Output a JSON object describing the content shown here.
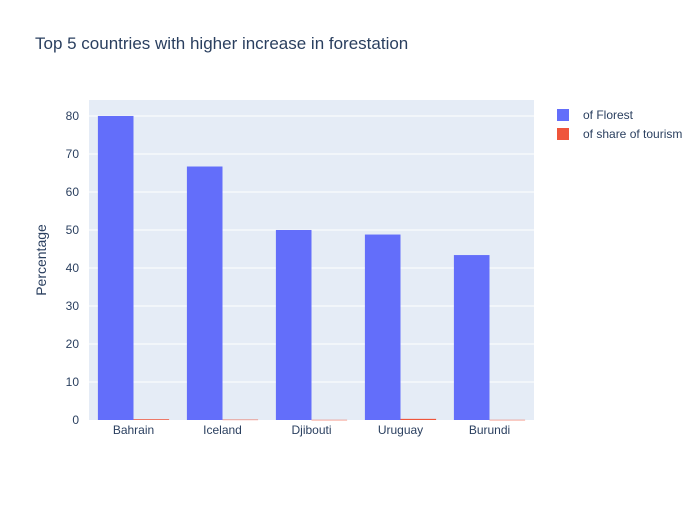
{
  "chart_data": {
    "type": "bar",
    "title": "Top 5 countries with higher increase in forestation",
    "xlabel": "",
    "ylabel": "Percentage",
    "categories": [
      "Bahrain",
      "Iceland",
      "Djibouti",
      "Uruguay",
      "Burundi"
    ],
    "series": [
      {
        "name": "of Florest",
        "color": "#636efa",
        "values": [
          80.0,
          66.7,
          50.0,
          48.8,
          43.4
        ]
      },
      {
        "name": "of share of tourism",
        "color": "#ef553b",
        "values": [
          0.2,
          0.1,
          0.05,
          0.3,
          0.05
        ]
      }
    ],
    "yticks": [
      0,
      10,
      20,
      30,
      40,
      50,
      60,
      70,
      80
    ],
    "ylim": [
      0,
      84.2
    ],
    "grid": true,
    "legend": "top-right",
    "plot_background": "#e5ecf6"
  }
}
